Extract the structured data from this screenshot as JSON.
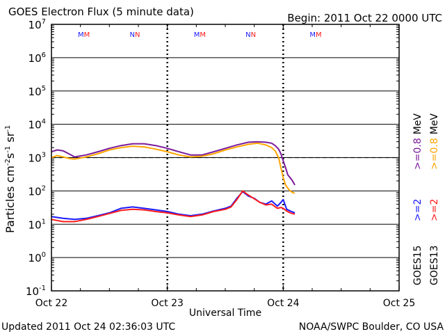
{
  "header": {
    "title": "GOES Electron Flux (5 minute data)",
    "begin": "Begin: 2011 Oct 22 0000 UTC"
  },
  "footer": {
    "updated": "Updated 2011 Oct 24 02:36:03 UTC",
    "source": "NOAA/SWPC Boulder, CO USA"
  },
  "axes": {
    "ylabel_base": "Particles cm",
    "ylabel_exp1": "-2",
    "ylabel_mid1": "s",
    "ylabel_exp2": "-1",
    "ylabel_mid2": "sr",
    "ylabel_exp3": "-1",
    "xlabel": "Universal Time",
    "x_ticks": [
      "Oct 22",
      "Oct 23",
      "Oct 24",
      "Oct 25"
    ],
    "y_tick_base": "10",
    "y_tick_exps": [
      "-1",
      "0",
      "1",
      "2",
      "3",
      "4",
      "5",
      "6",
      "7"
    ]
  },
  "legend": {
    "goes15": "GOES15",
    "goes13": "GOES13",
    "ch1": ">=2",
    "ch2": ">=0.8",
    "unit": "MeV",
    "color_goes15_2": "#1a1aff",
    "color_goes13_2": "#ff1a1a",
    "color_goes15_08": "#7a1a9a",
    "color_goes13_08": "#ffa500"
  },
  "mm_markers": [
    {
      "label": "MM",
      "day": 0.28
    },
    {
      "label": "NN",
      "day": 0.72
    },
    {
      "label": "MM",
      "day": 1.28
    },
    {
      "label": "NN",
      "day": 1.72
    },
    {
      "label": "MM",
      "day": 2.28
    }
  ],
  "chart_data": {
    "type": "line",
    "title": "GOES Electron Flux (5 minute data)",
    "xlabel": "Universal Time",
    "ylabel": "Particles cm-2 s-1 sr-1",
    "x_unit": "days since 2011 Oct 22 0000 UTC",
    "xlim": [
      0,
      3
    ],
    "ylim": [
      0.1,
      10000000
    ],
    "yscale": "log",
    "alert_threshold": 1000,
    "series": [
      {
        "name": "GOES15 >=0.8 MeV",
        "color": "#7a1a9a",
        "x": [
          0.0,
          0.05,
          0.1,
          0.15,
          0.2,
          0.3,
          0.4,
          0.5,
          0.6,
          0.7,
          0.8,
          0.9,
          1.0,
          1.1,
          1.2,
          1.3,
          1.4,
          1.5,
          1.6,
          1.7,
          1.78,
          1.85,
          1.9,
          1.93,
          1.96,
          1.98,
          2.0,
          2.02,
          2.04,
          2.06,
          2.08,
          2.1
        ],
        "values": [
          1500,
          1700,
          1600,
          1300,
          1050,
          1200,
          1500,
          1900,
          2300,
          2600,
          2600,
          2300,
          1900,
          1500,
          1200,
          1200,
          1500,
          1900,
          2400,
          2900,
          3000,
          2900,
          2700,
          2300,
          1800,
          1300,
          800,
          500,
          300,
          250,
          200,
          150
        ]
      },
      {
        "name": "GOES13 >=0.8 MeV",
        "color": "#ffa500",
        "x": [
          0.0,
          0.05,
          0.1,
          0.15,
          0.2,
          0.3,
          0.4,
          0.5,
          0.6,
          0.7,
          0.8,
          0.9,
          1.0,
          1.1,
          1.2,
          1.3,
          1.4,
          1.5,
          1.6,
          1.7,
          1.78,
          1.85,
          1.9,
          1.93,
          1.96,
          1.98,
          2.0,
          2.02,
          2.04,
          2.06,
          2.08,
          2.1
        ],
        "values": [
          1000,
          1150,
          1050,
          950,
          900,
          1050,
          1300,
          1700,
          2000,
          2200,
          2100,
          1800,
          1500,
          1200,
          1050,
          1100,
          1300,
          1700,
          2100,
          2500,
          2700,
          2400,
          2000,
          1600,
          1000,
          500,
          250,
          150,
          120,
          100,
          90,
          85
        ]
      },
      {
        "name": "GOES15 >=2 MeV",
        "color": "#1a1aff",
        "x": [
          0.0,
          0.1,
          0.2,
          0.3,
          0.4,
          0.5,
          0.6,
          0.7,
          0.8,
          0.9,
          1.0,
          1.1,
          1.2,
          1.3,
          1.4,
          1.5,
          1.55,
          1.6,
          1.65,
          1.7,
          1.75,
          1.8,
          1.85,
          1.9,
          1.95,
          1.98,
          2.0,
          2.03,
          2.06,
          2.1
        ],
        "values": [
          17,
          15,
          14,
          15,
          18,
          22,
          30,
          33,
          30,
          27,
          24,
          20,
          18,
          20,
          25,
          30,
          35,
          60,
          95,
          70,
          60,
          45,
          40,
          50,
          35,
          45,
          55,
          28,
          25,
          22
        ]
      },
      {
        "name": "GOES13 >=2 MeV",
        "color": "#ff1a1a",
        "x": [
          0.0,
          0.1,
          0.2,
          0.3,
          0.4,
          0.5,
          0.6,
          0.7,
          0.8,
          0.9,
          1.0,
          1.1,
          1.2,
          1.3,
          1.4,
          1.5,
          1.55,
          1.6,
          1.65,
          1.7,
          1.75,
          1.8,
          1.85,
          1.9,
          1.95,
          1.98,
          2.0,
          2.03,
          2.06,
          2.1
        ],
        "values": [
          14,
          12,
          12,
          14,
          17,
          21,
          26,
          28,
          27,
          24,
          22,
          19,
          17,
          19,
          24,
          28,
          33,
          55,
          100,
          75,
          58,
          45,
          38,
          40,
          30,
          32,
          30,
          25,
          22,
          20
        ]
      }
    ]
  }
}
